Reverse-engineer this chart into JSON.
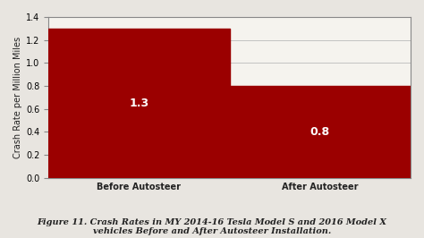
{
  "categories": [
    "Before Autosteer",
    "After Autosteer"
  ],
  "values": [
    1.3,
    0.8
  ],
  "bar_color": "#9B0000",
  "bar_labels": [
    "1.3",
    "0.8"
  ],
  "bar_label_color": "#FFFFFF",
  "bar_label_fontsize": 9,
  "ylabel": "Crash Rate per Million Miles",
  "ylim": [
    0,
    1.4
  ],
  "yticks": [
    0.0,
    0.2,
    0.4,
    0.6,
    0.8,
    1.0,
    1.2,
    1.4
  ],
  "caption_line1": "Figure 11. Crash Rates in MY 2014-16 Tesla Model S and 2016 Model X",
  "caption_line2": "vehicles Before and After Autosteer Installation.",
  "caption_fontsize": 7.0,
  "xlabel_fontsize": 8,
  "ylabel_fontsize": 7,
  "tick_fontsize": 7,
  "figure_bg_color": "#E8E5E0",
  "plot_bg_color": "#F5F3EE",
  "bar_width": 0.5,
  "bar_positions": [
    0.25,
    0.75
  ],
  "grid_color": "#BBBBBB",
  "border_color": "#888888",
  "xlim": [
    0.0,
    1.0
  ]
}
